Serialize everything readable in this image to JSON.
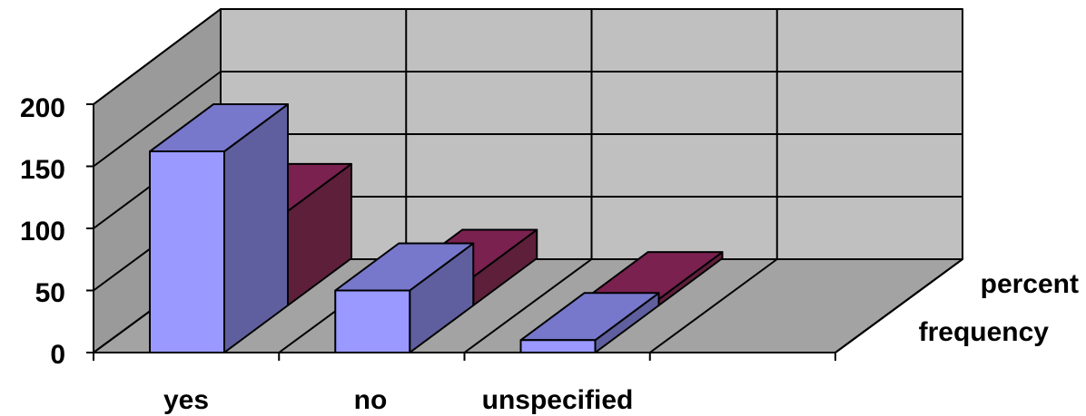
{
  "chart_data": {
    "type": "bar",
    "subtype": "3d-clustered-column",
    "title": "",
    "xlabel": "",
    "ylabel": "",
    "categories": [
      "yes",
      "no",
      "unspecified"
    ],
    "series": [
      {
        "name": "frequency",
        "values": [
          162,
          50,
          10
        ],
        "front_color": "#9999ff",
        "top_color": "#7777cc",
        "side_color": "#5f5f9f"
      },
      {
        "name": "percent",
        "values": [
          76,
          23,
          5
        ],
        "front_color": "#993366",
        "top_color": "#7a2150",
        "side_color": "#5e1f3b"
      }
    ],
    "ylim": [
      0,
      200
    ],
    "yticks": [
      0,
      50,
      100,
      150,
      200
    ],
    "grid": true,
    "colors": {
      "walls": "#c0c0c0",
      "floor": "#a3a3a3",
      "left_wall": "#9a9a9a",
      "edges": "#000000"
    }
  }
}
